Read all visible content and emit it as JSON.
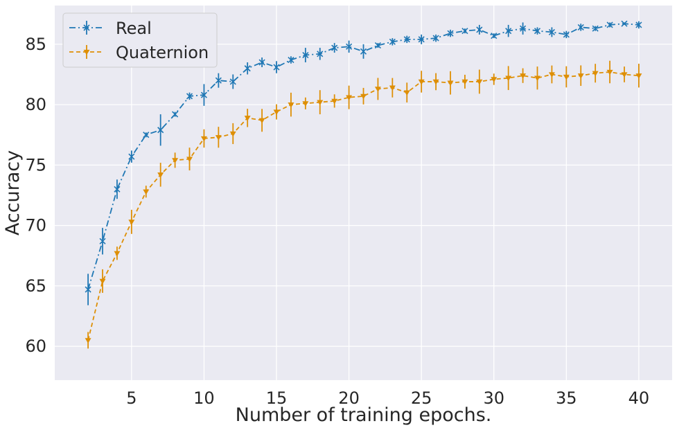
{
  "chart_data": {
    "type": "line",
    "xlabel": "Number of training epochs.",
    "ylabel": "Accuracy",
    "xlim": [
      -0.3,
      42.3
    ],
    "ylim": [
      57.2,
      88.2
    ],
    "xticks": [
      5,
      10,
      15,
      20,
      25,
      30,
      35,
      40
    ],
    "yticks": [
      60,
      65,
      70,
      75,
      80,
      85
    ],
    "grid": true,
    "legend_position": "top-left",
    "x": [
      2,
      3,
      4,
      5,
      6,
      7,
      8,
      9,
      10,
      11,
      12,
      13,
      14,
      15,
      16,
      17,
      18,
      19,
      20,
      21,
      22,
      23,
      24,
      25,
      26,
      27,
      28,
      29,
      30,
      31,
      32,
      33,
      34,
      35,
      36,
      37,
      38,
      39,
      40
    ],
    "series": [
      {
        "name": "Real",
        "color": "#1f77b4",
        "marker": "x",
        "line_style": "dash-dot",
        "values": [
          64.7,
          68.7,
          73.0,
          75.7,
          77.5,
          77.9,
          79.2,
          80.7,
          80.8,
          82.0,
          81.9,
          83.0,
          83.5,
          83.1,
          83.7,
          84.1,
          84.2,
          84.7,
          84.8,
          84.4,
          84.9,
          85.2,
          85.4,
          85.4,
          85.5,
          85.9,
          86.1,
          86.2,
          85.7,
          86.1,
          86.3,
          86.1,
          86.0,
          85.8,
          86.4,
          86.3,
          86.6,
          86.7,
          86.6
        ],
        "errors": [
          1.3,
          1.1,
          0.8,
          0.5,
          0.2,
          1.3,
          0.2,
          0.3,
          0.9,
          0.6,
          0.6,
          0.5,
          0.4,
          0.5,
          0.3,
          0.6,
          0.5,
          0.4,
          0.5,
          0.6,
          0.2,
          0.3,
          0.3,
          0.4,
          0.3,
          0.3,
          0.2,
          0.4,
          0.2,
          0.5,
          0.5,
          0.3,
          0.4,
          0.3,
          0.3,
          0.2,
          0.2,
          0.1,
          0.3
        ]
      },
      {
        "name": "Quaternion",
        "color": "#de8f05",
        "marker": "triangle-down",
        "line_style": "dashed",
        "values": [
          60.5,
          65.4,
          67.7,
          70.3,
          72.8,
          74.2,
          75.4,
          75.5,
          77.2,
          77.3,
          77.6,
          78.9,
          78.7,
          79.4,
          80.0,
          80.1,
          80.2,
          80.3,
          80.6,
          80.7,
          81.3,
          81.4,
          81.0,
          81.9,
          81.9,
          81.8,
          81.9,
          81.9,
          82.1,
          82.2,
          82.4,
          82.2,
          82.5,
          82.3,
          82.4,
          82.6,
          82.7,
          82.5,
          82.4
        ]
      }
    ]
  }
}
